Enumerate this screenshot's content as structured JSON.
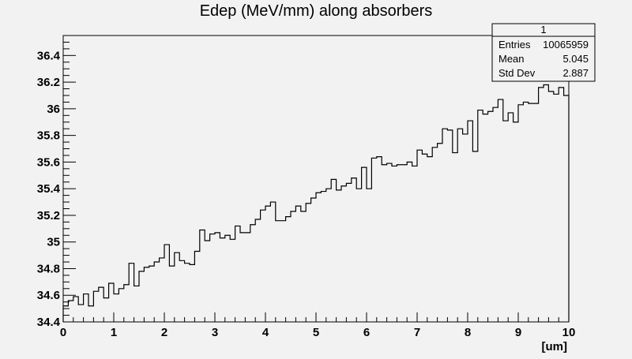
{
  "chart_data": {
    "type": "line",
    "title": "Edep (MeV/mm) along absorbers",
    "xlabel": "[um]",
    "ylabel": "",
    "xlim": [
      0,
      10
    ],
    "ylim": [
      34.4,
      36.55
    ],
    "x_ticks": [
      "0",
      "1",
      "2",
      "3",
      "4",
      "5",
      "6",
      "7",
      "8",
      "9",
      "10"
    ],
    "y_ticks": [
      "34.4",
      "34.6",
      "34.8",
      "35",
      "35.2",
      "35.4",
      "35.6",
      "35.8",
      "36",
      "36.2",
      "36.4"
    ],
    "grid": false,
    "series": [
      {
        "bin_width": 0.1,
        "values": [
          34.52,
          34.56,
          34.59,
          34.53,
          34.61,
          34.52,
          34.63,
          34.66,
          34.58,
          34.69,
          34.61,
          34.65,
          34.68,
          34.84,
          34.67,
          34.78,
          34.81,
          34.82,
          34.85,
          34.88,
          34.98,
          34.82,
          34.92,
          34.86,
          34.84,
          34.83,
          34.93,
          35.09,
          35.01,
          35.06,
          35.07,
          35.03,
          35.05,
          35.02,
          35.12,
          35.07,
          35.07,
          35.13,
          35.17,
          35.24,
          35.27,
          35.3,
          35.16,
          35.16,
          35.19,
          35.23,
          35.27,
          35.23,
          35.29,
          35.33,
          35.37,
          35.38,
          35.4,
          35.47,
          35.39,
          35.42,
          35.44,
          35.48,
          35.4,
          35.56,
          35.4,
          35.63,
          35.64,
          35.58,
          35.59,
          35.57,
          35.58,
          35.58,
          35.6,
          35.57,
          35.69,
          35.66,
          35.64,
          35.71,
          35.74,
          35.85,
          35.84,
          35.67,
          35.85,
          35.81,
          35.91,
          35.68,
          35.99,
          35.96,
          35.98,
          36.01,
          36.07,
          35.91,
          35.97,
          35.9,
          36.03,
          36.05,
          36.04,
          36.04,
          36.16,
          36.18,
          36.13,
          36.11,
          36.16,
          36.1
        ]
      }
    ]
  },
  "stats_box": {
    "name": "1",
    "rows": [
      {
        "label": "Entries",
        "value": "10065959"
      },
      {
        "label": "Mean",
        "value": "5.045"
      },
      {
        "label": "Std Dev",
        "value": "2.887"
      }
    ]
  }
}
